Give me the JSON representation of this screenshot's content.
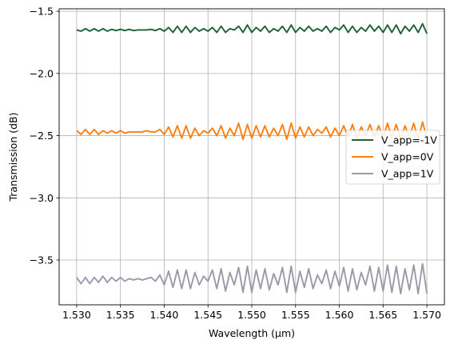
{
  "chart_data": {
    "type": "line",
    "title": "",
    "xlabel": "Wavelength (μm)",
    "ylabel": "Transmission (dB)",
    "xlim": [
      1.528,
      1.572
    ],
    "ylim": [
      -3.86,
      -1.48
    ],
    "xticks": [
      1.53,
      1.535,
      1.54,
      1.545,
      1.55,
      1.555,
      1.56,
      1.565,
      1.57
    ],
    "xtick_labels": [
      "1.530",
      "1.535",
      "1.540",
      "1.545",
      "1.550",
      "1.555",
      "1.560",
      "1.565",
      "1.570"
    ],
    "yticks": [
      -3.5,
      -3.0,
      -2.5,
      -2.0,
      -1.5
    ],
    "ytick_labels": [
      "−3.5",
      "−3.0",
      "−2.5",
      "−2.0",
      "−1.5"
    ],
    "grid": true,
    "legend_position": "center-right",
    "x": [
      1.53,
      1.5305,
      1.531,
      1.5315,
      1.532,
      1.5325,
      1.533,
      1.5335,
      1.534,
      1.5345,
      1.535,
      1.5355,
      1.536,
      1.5365,
      1.537,
      1.5375,
      1.538,
      1.5385,
      1.539,
      1.5395,
      1.54,
      1.5405,
      1.541,
      1.5415,
      1.542,
      1.5425,
      1.543,
      1.5435,
      1.544,
      1.5445,
      1.545,
      1.5455,
      1.546,
      1.5465,
      1.547,
      1.5475,
      1.548,
      1.5485,
      1.549,
      1.5495,
      1.55,
      1.5505,
      1.551,
      1.5515,
      1.552,
      1.5525,
      1.553,
      1.5535,
      1.554,
      1.5545,
      1.555,
      1.5555,
      1.556,
      1.5565,
      1.557,
      1.5575,
      1.558,
      1.5585,
      1.559,
      1.5595,
      1.56,
      1.5605,
      1.561,
      1.5615,
      1.562,
      1.5625,
      1.563,
      1.5635,
      1.564,
      1.5645,
      1.565,
      1.5655,
      1.566,
      1.5665,
      1.567,
      1.5675,
      1.568,
      1.5685,
      1.569,
      1.5695,
      1.57
    ],
    "series": [
      {
        "name": "V_app=-1V",
        "color": "#1f5f3a",
        "values": [
          -1.65,
          -1.66,
          -1.64,
          -1.66,
          -1.64,
          -1.66,
          -1.64,
          -1.66,
          -1.645,
          -1.655,
          -1.645,
          -1.655,
          -1.645,
          -1.655,
          -1.65,
          -1.65,
          -1.65,
          -1.645,
          -1.655,
          -1.64,
          -1.66,
          -1.63,
          -1.67,
          -1.62,
          -1.67,
          -1.62,
          -1.67,
          -1.63,
          -1.66,
          -1.64,
          -1.66,
          -1.63,
          -1.67,
          -1.62,
          -1.67,
          -1.64,
          -1.65,
          -1.62,
          -1.67,
          -1.61,
          -1.67,
          -1.63,
          -1.66,
          -1.62,
          -1.67,
          -1.64,
          -1.66,
          -1.62,
          -1.67,
          -1.61,
          -1.67,
          -1.63,
          -1.66,
          -1.62,
          -1.66,
          -1.64,
          -1.66,
          -1.62,
          -1.67,
          -1.63,
          -1.65,
          -1.61,
          -1.67,
          -1.62,
          -1.67,
          -1.63,
          -1.66,
          -1.61,
          -1.66,
          -1.62,
          -1.67,
          -1.61,
          -1.67,
          -1.61,
          -1.68,
          -1.62,
          -1.66,
          -1.61,
          -1.67,
          -1.6,
          -1.68
        ]
      },
      {
        "name": "V_app=0V",
        "color": "#ff7f0e",
        "values": [
          -2.46,
          -2.49,
          -2.45,
          -2.49,
          -2.45,
          -2.49,
          -2.46,
          -2.48,
          -2.46,
          -2.48,
          -2.46,
          -2.48,
          -2.47,
          -2.47,
          -2.47,
          -2.47,
          -2.46,
          -2.47,
          -2.47,
          -2.45,
          -2.49,
          -2.43,
          -2.51,
          -2.42,
          -2.52,
          -2.42,
          -2.52,
          -2.44,
          -2.5,
          -2.46,
          -2.48,
          -2.44,
          -2.5,
          -2.42,
          -2.52,
          -2.44,
          -2.5,
          -2.4,
          -2.53,
          -2.41,
          -2.52,
          -2.42,
          -2.51,
          -2.42,
          -2.51,
          -2.44,
          -2.5,
          -2.41,
          -2.53,
          -2.4,
          -2.52,
          -2.43,
          -2.51,
          -2.43,
          -2.5,
          -2.45,
          -2.48,
          -2.43,
          -2.51,
          -2.44,
          -2.5,
          -2.42,
          -2.51,
          -2.41,
          -2.52,
          -2.43,
          -2.5,
          -2.41,
          -2.51,
          -2.42,
          -2.52,
          -2.4,
          -2.52,
          -2.41,
          -2.53,
          -2.42,
          -2.51,
          -2.4,
          -2.53,
          -2.39,
          -2.52
        ]
      },
      {
        "name": "V_app=1V",
        "color": "#999aaa",
        "values": [
          -3.64,
          -3.69,
          -3.64,
          -3.69,
          -3.64,
          -3.68,
          -3.63,
          -3.68,
          -3.64,
          -3.67,
          -3.64,
          -3.67,
          -3.65,
          -3.66,
          -3.65,
          -3.66,
          -3.65,
          -3.64,
          -3.67,
          -3.62,
          -3.7,
          -3.59,
          -3.72,
          -3.58,
          -3.73,
          -3.58,
          -3.73,
          -3.6,
          -3.7,
          -3.63,
          -3.67,
          -3.58,
          -3.73,
          -3.57,
          -3.75,
          -3.6,
          -3.7,
          -3.56,
          -3.76,
          -3.55,
          -3.76,
          -3.58,
          -3.73,
          -3.57,
          -3.74,
          -3.61,
          -3.7,
          -3.56,
          -3.76,
          -3.55,
          -3.76,
          -3.59,
          -3.72,
          -3.57,
          -3.73,
          -3.62,
          -3.69,
          -3.58,
          -3.73,
          -3.59,
          -3.71,
          -3.56,
          -3.75,
          -3.57,
          -3.74,
          -3.6,
          -3.7,
          -3.55,
          -3.75,
          -3.56,
          -3.75,
          -3.54,
          -3.76,
          -3.55,
          -3.77,
          -3.57,
          -3.74,
          -3.54,
          -3.77,
          -3.53,
          -3.77
        ]
      }
    ]
  }
}
